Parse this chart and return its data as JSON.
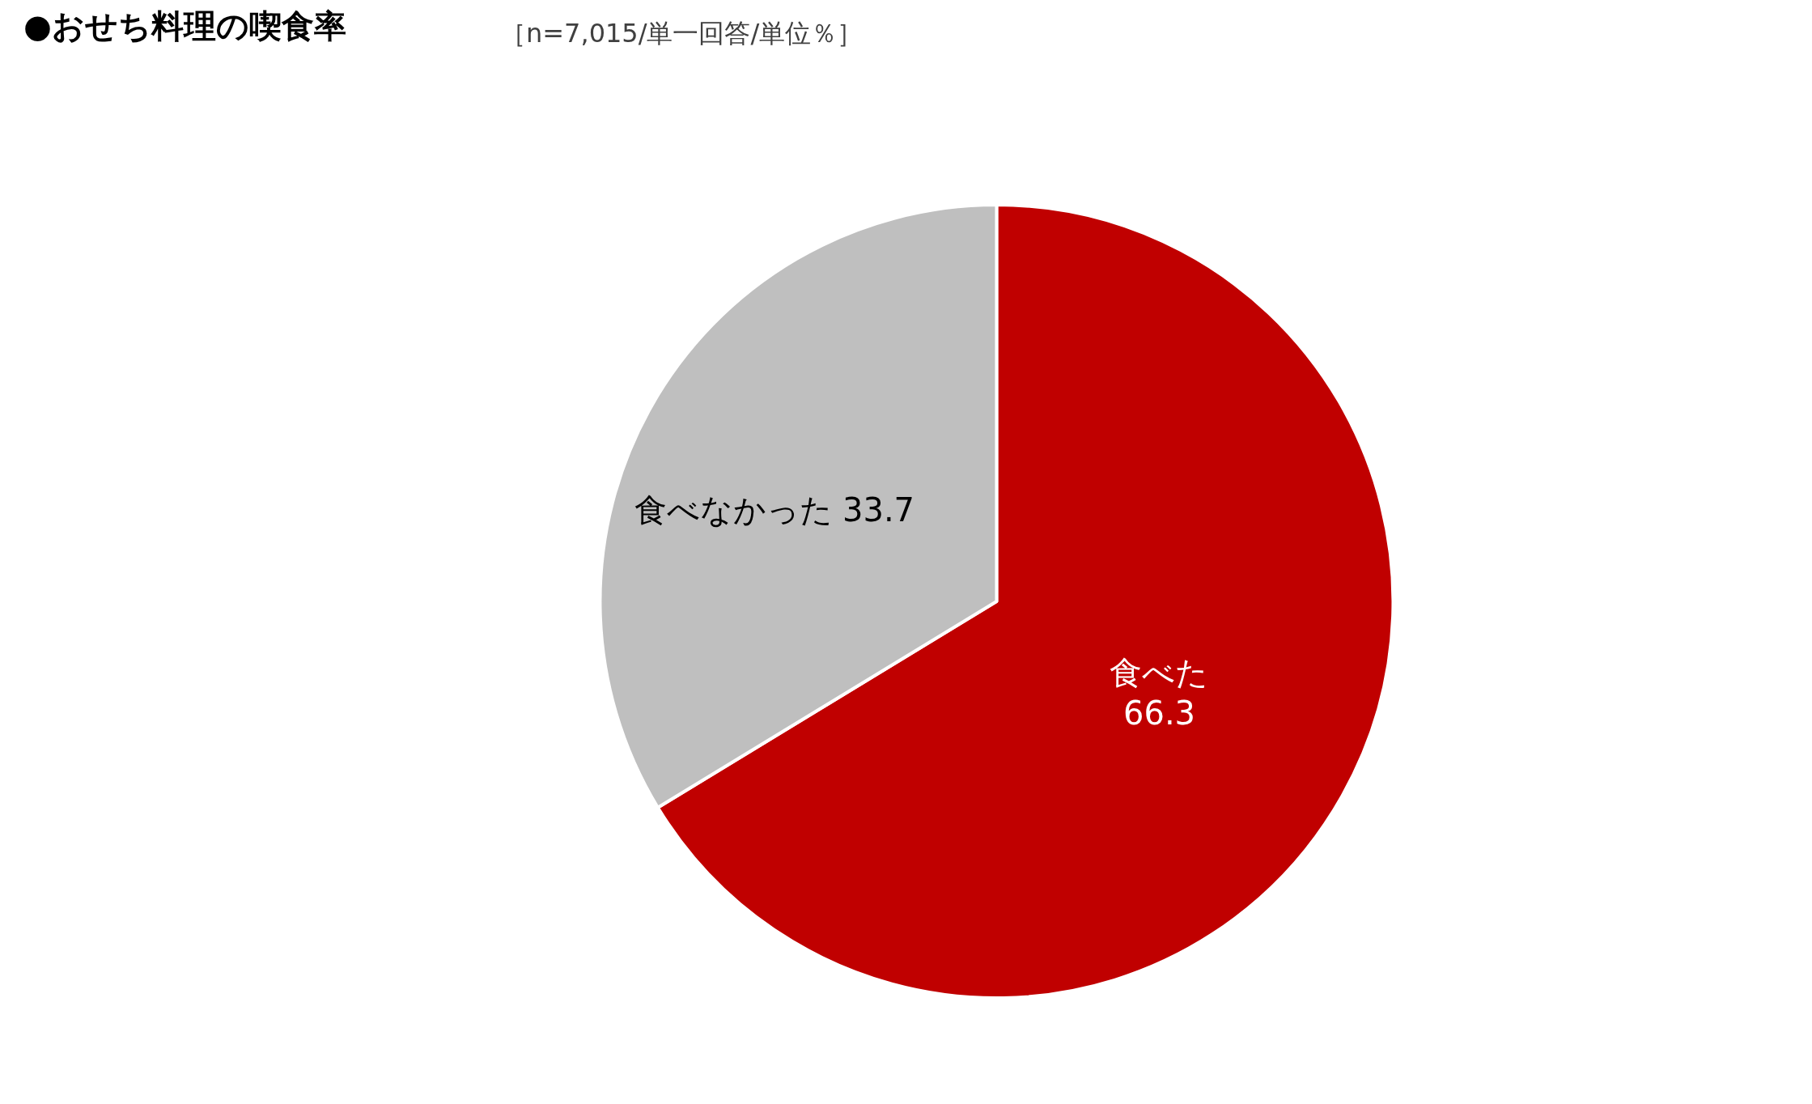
{
  "chart_data": {
    "type": "pie",
    "title": "●おせち料理の喫食率",
    "subtitle": "［n=7,015/単一回答/単位％］",
    "categories": [
      "食べた",
      "食べなかった"
    ],
    "values": [
      66.3,
      33.7
    ],
    "data_labels": true,
    "colors": [
      "#c00000",
      "#bfbfbf"
    ],
    "legend": false
  }
}
